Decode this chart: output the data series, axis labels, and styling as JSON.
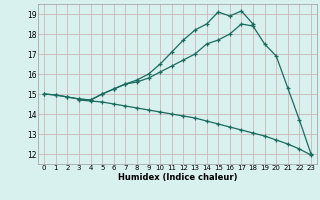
{
  "title": "",
  "xlabel": "Humidex (Indice chaleur)",
  "xlim": [
    -0.5,
    23.5
  ],
  "ylim": [
    11.5,
    19.5
  ],
  "xticks": [
    0,
    1,
    2,
    3,
    4,
    5,
    6,
    7,
    8,
    9,
    10,
    11,
    12,
    13,
    14,
    15,
    16,
    17,
    18,
    19,
    20,
    21,
    22,
    23
  ],
  "yticks": [
    12,
    13,
    14,
    15,
    16,
    17,
    18,
    19
  ],
  "background_color": "#d8f0ee",
  "grid_color": "#c8b8b8",
  "line_color": "#1a6b5e",
  "line1_x": [
    0,
    1,
    2,
    3,
    4,
    5,
    6,
    7,
    8,
    9,
    10,
    11,
    12,
    13,
    14,
    15,
    16,
    17,
    18,
    19,
    20,
    21,
    22,
    23
  ],
  "line1_y": [
    15.0,
    14.95,
    14.85,
    14.75,
    14.7,
    15.0,
    15.25,
    15.5,
    15.6,
    15.8,
    16.1,
    16.4,
    16.7,
    17.0,
    17.5,
    17.7,
    18.0,
    18.5,
    18.4,
    17.5,
    16.9,
    15.3,
    13.7,
    12.0
  ],
  "line2_x": [
    0,
    1,
    2,
    3,
    4,
    5,
    6,
    7,
    8,
    9,
    10,
    11,
    12,
    13,
    14,
    15,
    16,
    17,
    18
  ],
  "line2_y": [
    15.0,
    14.95,
    14.85,
    14.75,
    14.7,
    15.0,
    15.25,
    15.5,
    15.7,
    16.0,
    16.5,
    17.1,
    17.7,
    18.2,
    18.5,
    19.1,
    18.9,
    19.15,
    18.5
  ],
  "line3_x": [
    3,
    4,
    5,
    6,
    7,
    8,
    9,
    10,
    11,
    12,
    13,
    14,
    15,
    16,
    17,
    18,
    19,
    20,
    21,
    22,
    23
  ],
  "line3_y": [
    14.7,
    14.65,
    14.6,
    14.5,
    14.4,
    14.3,
    14.2,
    14.1,
    14.0,
    13.9,
    13.8,
    13.65,
    13.5,
    13.35,
    13.2,
    13.05,
    12.9,
    12.7,
    12.5,
    12.25,
    11.95
  ]
}
